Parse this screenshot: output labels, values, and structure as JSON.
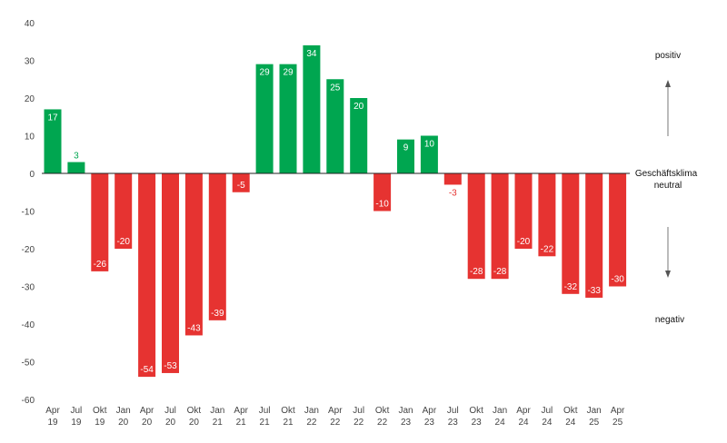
{
  "chart_data": {
    "type": "bar",
    "categories": [
      [
        "Apr",
        "19"
      ],
      [
        "Jul",
        "19"
      ],
      [
        "Okt",
        "19"
      ],
      [
        "Jan",
        "20"
      ],
      [
        "Apr",
        "20"
      ],
      [
        "Jul",
        "20"
      ],
      [
        "Okt",
        "20"
      ],
      [
        "Jan",
        "21"
      ],
      [
        "Apr",
        "21"
      ],
      [
        "Jul",
        "21"
      ],
      [
        "Okt",
        "21"
      ],
      [
        "Jan",
        "22"
      ],
      [
        "Apr",
        "22"
      ],
      [
        "Jul",
        "22"
      ],
      [
        "Okt",
        "22"
      ],
      [
        "Jan",
        "23"
      ],
      [
        "Apr",
        "23"
      ],
      [
        "Jul",
        "23"
      ],
      [
        "Okt",
        "23"
      ],
      [
        "Jan",
        "24"
      ],
      [
        "Apr",
        "24"
      ],
      [
        "Jul",
        "24"
      ],
      [
        "Okt",
        "24"
      ],
      [
        "Jan",
        "25"
      ],
      [
        "Apr",
        "25"
      ]
    ],
    "values": [
      17,
      3,
      -26,
      -20,
      -54,
      -53,
      -43,
      -39,
      -5,
      29,
      29,
      34,
      25,
      20,
      -10,
      9,
      10,
      -3,
      -28,
      -28,
      -20,
      -22,
      -32,
      -33,
      -30
    ],
    "ylim": [
      -60,
      40
    ],
    "yticks": [
      40,
      30,
      20,
      10,
      0,
      -10,
      -20,
      -30,
      -40,
      -50,
      -60
    ],
    "colors": {
      "positive": "#00a650",
      "negative": "#e63331",
      "axis": "#222222",
      "arrow": "#555555"
    },
    "annotations": {
      "top": "positiv",
      "middle_line1": "Geschäftsklima",
      "middle_line2": "neutral",
      "bottom": "negativ"
    },
    "grid": false
  }
}
